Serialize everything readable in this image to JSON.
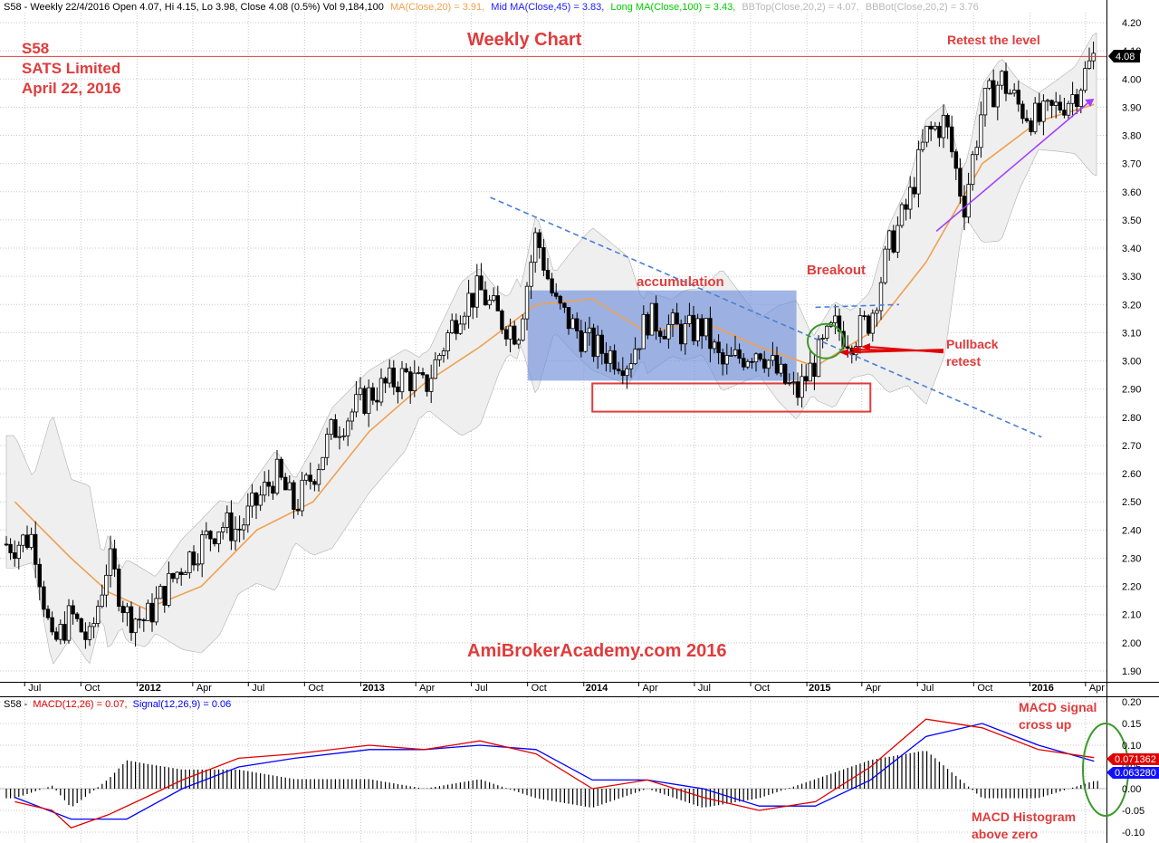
{
  "header": {
    "ticker_prefix": "S58 - Weekly 22/4/2016 Open 4.07, Hi 4.15, Lo 3.98, Close 4.08 (0.5%) Vol 9,184,100",
    "ma20": "MA(Close,20) = 3.91,",
    "ma45": "Mid MA(Close,45) = 3.83,",
    "ma100": "Long MA(Close,100) = 3.43,",
    "bbtop": "BBTop(Close,20,2) = 4.07,",
    "bbbot": "BBBot(Close,20,2) = 3.76"
  },
  "macd_header": {
    "prefix": "S58 -",
    "macd": "MACD(12,26) = 0.07,",
    "signal": "Signal(12,26,9) = 0.06"
  },
  "annotations": {
    "code": "S58",
    "company": "SATS Limited",
    "date": "April 22, 2016",
    "title": "Weekly Chart",
    "retest_level": "Retest the level",
    "accumulation": "accumulation",
    "breakout": "Breakout",
    "pullback_1": "Pullback",
    "pullback_2": "retest",
    "watermark": "AmiBrokerAcademy.com  2016",
    "macd_cross_1": "MACD signal",
    "macd_cross_2": "cross up",
    "macd_hist_1": "MACD Histogram",
    "macd_hist_2": "above zero"
  },
  "price_badge": "4.08",
  "macd_badge": "0.071362",
  "signal_badge": "0.063280",
  "colors": {
    "ma20": "#f0a050",
    "ma45": "#1a1aff",
    "ma100": "#00cc00",
    "bb": "#b0b0b0",
    "macd": "#e00000",
    "signal": "#0000ff",
    "annotation": "#e03c3c",
    "accumulation_box": "#6f8fd8",
    "resistance_line": "#e03c3c",
    "trendline": "#4a7fd6",
    "up_arrow": "#a040ff"
  },
  "chart_data": [
    {
      "type": "candlestick",
      "title": "Weekly Chart",
      "ylim": [
        1.85,
        4.25
      ],
      "yticks": [
        1.9,
        2.0,
        2.1,
        2.2,
        2.3,
        2.4,
        2.5,
        2.6,
        2.7,
        2.8,
        2.9,
        3.0,
        3.1,
        3.2,
        3.3,
        3.4,
        3.5,
        3.6,
        3.7,
        3.8,
        3.9,
        4.0,
        4.1,
        4.2
      ],
      "x_tick_labels": [
        "Jul",
        "Oct",
        "2012",
        "Apr",
        "Jul",
        "Oct",
        "2013",
        "Apr",
        "Jul",
        "Oct",
        "2014",
        "Apr",
        "Jul",
        "Oct",
        "2015",
        "Apr",
        "Jul",
        "Oct",
        "2016",
        "Apr"
      ],
      "last_bar": {
        "date": "22/4/2016",
        "open": 4.07,
        "high": 4.15,
        "low": 3.98,
        "close": 4.08,
        "volume": 9184100
      },
      "close_path": [
        {
          "date": "2011-06",
          "close": 2.35
        },
        {
          "date": "2011-07",
          "close": 2.38
        },
        {
          "date": "2011-08",
          "close": 1.98
        },
        {
          "date": "2011-09",
          "close": 2.1
        },
        {
          "date": "2011-10",
          "close": 2.0
        },
        {
          "date": "2011-11",
          "close": 2.3
        },
        {
          "date": "2011-12",
          "close": 2.1
        },
        {
          "date": "2012-01",
          "close": 2.08
        },
        {
          "date": "2012-03",
          "close": 2.28
        },
        {
          "date": "2012-05",
          "close": 2.42
        },
        {
          "date": "2012-06",
          "close": 2.4
        },
        {
          "date": "2012-08",
          "close": 2.6
        },
        {
          "date": "2012-09",
          "close": 2.48
        },
        {
          "date": "2012-10",
          "close": 2.6
        },
        {
          "date": "2012-11",
          "close": 2.75
        },
        {
          "date": "2013-01",
          "close": 2.88
        },
        {
          "date": "2013-03",
          "close": 2.95
        },
        {
          "date": "2013-04",
          "close": 2.9
        },
        {
          "date": "2013-05",
          "close": 3.05
        },
        {
          "date": "2013-06",
          "close": 3.2
        },
        {
          "date": "2013-07",
          "close": 3.25
        },
        {
          "date": "2013-08",
          "close": 3.15
        },
        {
          "date": "2013-09",
          "close": 3.1
        },
        {
          "date": "2013-10",
          "close": 3.45
        },
        {
          "date": "2013-11",
          "close": 3.2
        },
        {
          "date": "2013-12",
          "close": 3.12
        },
        {
          "date": "2014-01",
          "close": 3.05
        },
        {
          "date": "2014-03",
          "close": 3.0
        },
        {
          "date": "2014-04",
          "close": 3.15
        },
        {
          "date": "2014-06",
          "close": 3.1
        },
        {
          "date": "2014-07",
          "close": 3.12
        },
        {
          "date": "2014-08",
          "close": 2.98
        },
        {
          "date": "2014-10",
          "close": 3.05
        },
        {
          "date": "2014-11",
          "close": 2.95
        },
        {
          "date": "2014-12",
          "close": 2.88
        },
        {
          "date": "2015-01",
          "close": 3.0
        },
        {
          "date": "2015-02",
          "close": 3.12
        },
        {
          "date": "2015-03",
          "close": 3.08
        },
        {
          "date": "2015-04",
          "close": 3.15
        },
        {
          "date": "2015-05",
          "close": 3.4
        },
        {
          "date": "2015-06",
          "close": 3.55
        },
        {
          "date": "2015-07",
          "close": 3.8
        },
        {
          "date": "2015-08",
          "close": 3.85
        },
        {
          "date": "2015-09",
          "close": 3.55
        },
        {
          "date": "2015-10",
          "close": 3.9
        },
        {
          "date": "2015-11",
          "close": 4.0
        },
        {
          "date": "2015-12",
          "close": 3.9
        },
        {
          "date": "2016-01",
          "close": 3.85
        },
        {
          "date": "2016-02",
          "close": 3.9
        },
        {
          "date": "2016-03",
          "close": 3.95
        },
        {
          "date": "2016-04",
          "close": 4.08
        }
      ],
      "ma20_path": [
        {
          "date": "2011-06",
          "value": 2.5
        },
        {
          "date": "2011-09",
          "value": 2.3
        },
        {
          "date": "2011-11",
          "value": 2.18
        },
        {
          "date": "2012-01",
          "value": 2.12
        },
        {
          "date": "2012-04",
          "value": 2.2
        },
        {
          "date": "2012-07",
          "value": 2.4
        },
        {
          "date": "2012-10",
          "value": 2.5
        },
        {
          "date": "2013-01",
          "value": 2.75
        },
        {
          "date": "2013-04",
          "value": 2.92
        },
        {
          "date": "2013-07",
          "value": 3.05
        },
        {
          "date": "2013-10",
          "value": 3.2
        },
        {
          "date": "2014-01",
          "value": 3.22
        },
        {
          "date": "2014-04",
          "value": 3.1
        },
        {
          "date": "2014-07",
          "value": 3.14
        },
        {
          "date": "2014-10",
          "value": 3.05
        },
        {
          "date": "2015-01",
          "value": 2.98
        },
        {
          "date": "2015-04",
          "value": 3.1
        },
        {
          "date": "2015-07",
          "value": 3.35
        },
        {
          "date": "2015-10",
          "value": 3.7
        },
        {
          "date": "2016-01",
          "value": 3.85
        },
        {
          "date": "2016-04",
          "value": 3.91
        }
      ],
      "resistance_level": 4.08,
      "accumulation_range": [
        2.93,
        3.25
      ],
      "support_box": [
        2.82,
        2.92
      ],
      "downtrend_line": [
        {
          "date": "2013-08",
          "value": 3.58
        },
        {
          "date": "2016-01",
          "value": 2.73
        }
      ]
    },
    {
      "type": "line",
      "ylim": [
        -0.115,
        0.205
      ],
      "yticks": [
        -0.1,
        -0.05,
        0.0,
        0.05,
        0.1,
        0.15,
        0.2
      ],
      "series": [
        {
          "name": "MACD(12,26)",
          "last": 0.071362,
          "values": [
            {
              "date": "2011-06",
              "value": -0.03
            },
            {
              "date": "2011-08",
              "value": -0.05
            },
            {
              "date": "2011-09",
              "value": -0.09
            },
            {
              "date": "2011-11",
              "value": -0.06
            },
            {
              "date": "2012-01",
              "value": -0.02
            },
            {
              "date": "2012-03",
              "value": 0.02
            },
            {
              "date": "2012-06",
              "value": 0.07
            },
            {
              "date": "2012-09",
              "value": 0.08
            },
            {
              "date": "2013-01",
              "value": 0.1
            },
            {
              "date": "2013-04",
              "value": 0.09
            },
            {
              "date": "2013-07",
              "value": 0.11
            },
            {
              "date": "2013-10",
              "value": 0.08
            },
            {
              "date": "2014-01",
              "value": 0.0
            },
            {
              "date": "2014-04",
              "value": 0.02
            },
            {
              "date": "2014-07",
              "value": -0.02
            },
            {
              "date": "2014-10",
              "value": -0.05
            },
            {
              "date": "2015-01",
              "value": -0.03
            },
            {
              "date": "2015-04",
              "value": 0.05
            },
            {
              "date": "2015-07",
              "value": 0.16
            },
            {
              "date": "2015-10",
              "value": 0.14
            },
            {
              "date": "2016-01",
              "value": 0.09
            },
            {
              "date": "2016-04",
              "value": 0.071362
            }
          ]
        },
        {
          "name": "Signal(12,26,9)",
          "last": 0.06328,
          "values": [
            {
              "date": "2011-06",
              "value": -0.02
            },
            {
              "date": "2011-09",
              "value": -0.07
            },
            {
              "date": "2011-12",
              "value": -0.07
            },
            {
              "date": "2012-03",
              "value": 0.0
            },
            {
              "date": "2012-06",
              "value": 0.05
            },
            {
              "date": "2012-09",
              "value": 0.07
            },
            {
              "date": "2013-01",
              "value": 0.09
            },
            {
              "date": "2013-04",
              "value": 0.09
            },
            {
              "date": "2013-07",
              "value": 0.1
            },
            {
              "date": "2013-10",
              "value": 0.09
            },
            {
              "date": "2014-01",
              "value": 0.02
            },
            {
              "date": "2014-04",
              "value": 0.02
            },
            {
              "date": "2014-07",
              "value": 0.0
            },
            {
              "date": "2014-10",
              "value": -0.04
            },
            {
              "date": "2015-01",
              "value": -0.04
            },
            {
              "date": "2015-04",
              "value": 0.02
            },
            {
              "date": "2015-07",
              "value": 0.12
            },
            {
              "date": "2015-10",
              "value": 0.15
            },
            {
              "date": "2016-01",
              "value": 0.1
            },
            {
              "date": "2016-04",
              "value": 0.06328
            }
          ]
        }
      ]
    }
  ]
}
